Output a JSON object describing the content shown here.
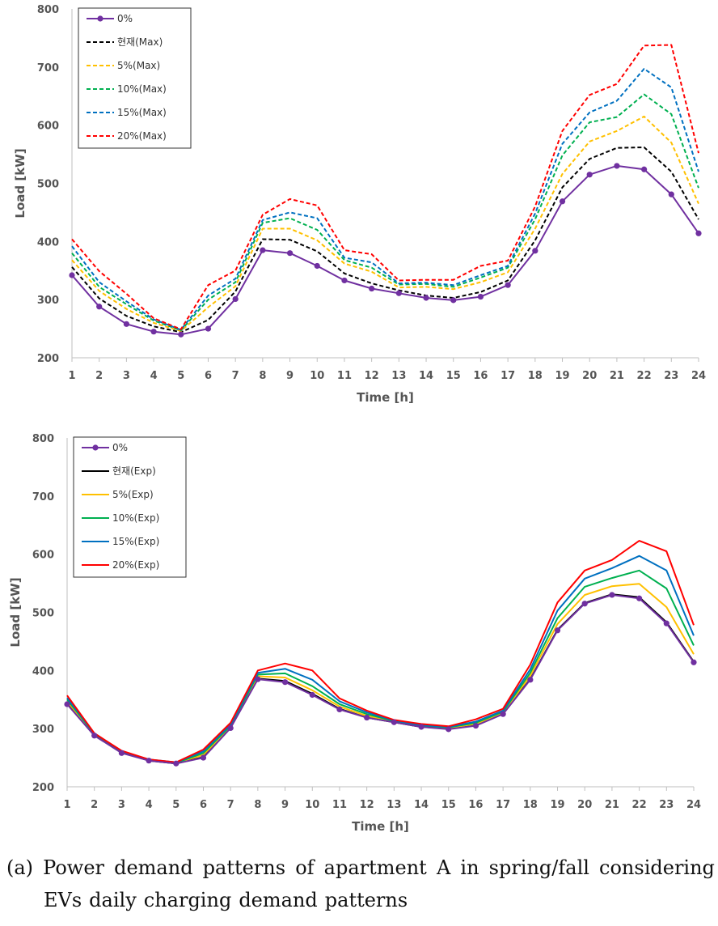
{
  "chart_data": [
    {
      "type": "line",
      "title": "",
      "xlabel": "Time [h]",
      "ylabel": "Load [kW]",
      "ylim": [
        200,
        800
      ],
      "yticks": [
        200,
        300,
        400,
        500,
        600,
        700,
        800
      ],
      "x": [
        1,
        2,
        3,
        4,
        5,
        6,
        7,
        8,
        9,
        10,
        11,
        12,
        13,
        14,
        15,
        16,
        17,
        18,
        19,
        20,
        21,
        22,
        23,
        24
      ],
      "legend_position": "top-left",
      "grid": false,
      "series": [
        {
          "name": "0%",
          "color": "#7030a0",
          "style": "solid-marker",
          "values": [
            342,
            288,
            258,
            245,
            240,
            250,
            301,
            385,
            380,
            358,
            333,
            319,
            311,
            303,
            299,
            305,
            325,
            384,
            469,
            515,
            530,
            524,
            481,
            414
          ]
        },
        {
          "name": "현재(Max)",
          "color": "#000000",
          "style": "dashed",
          "values": [
            356,
            302,
            272,
            254,
            244,
            265,
            314,
            404,
            403,
            383,
            345,
            328,
            316,
            307,
            303,
            313,
            333,
            402,
            493,
            542,
            561,
            562,
            520,
            438
          ]
        },
        {
          "name": "5%(Max)",
          "color": "#ffc000",
          "style": "dashed",
          "values": [
            368,
            315,
            284,
            260,
            246,
            287,
            323,
            422,
            422,
            402,
            362,
            348,
            321,
            322,
            318,
            330,
            347,
            422,
            516,
            572,
            590,
            615,
            570,
            465
          ]
        },
        {
          "name": "10%(Max)",
          "color": "#00b050",
          "style": "dashed",
          "values": [
            380,
            322,
            292,
            264,
            247,
            300,
            330,
            432,
            440,
            420,
            368,
            355,
            326,
            327,
            322,
            338,
            355,
            438,
            548,
            605,
            614,
            653,
            619,
            492
          ]
        },
        {
          "name": "15%(Max)",
          "color": "#0070c0",
          "style": "dashed",
          "values": [
            392,
            330,
            297,
            266,
            248,
            307,
            336,
            437,
            450,
            440,
            372,
            364,
            328,
            329,
            325,
            342,
            358,
            448,
            568,
            622,
            642,
            697,
            665,
            520
          ]
        },
        {
          "name": "20%(Max)",
          "color": "#ff0000",
          "style": "dashed",
          "values": [
            404,
            349,
            310,
            268,
            249,
            325,
            350,
            446,
            473,
            462,
            385,
            378,
            333,
            334,
            334,
            358,
            367,
            460,
            590,
            652,
            671,
            737,
            738,
            552
          ]
        }
      ]
    },
    {
      "type": "line",
      "title": "",
      "xlabel": "Time [h]",
      "ylabel": "Load [kW]",
      "ylim": [
        200,
        800
      ],
      "yticks": [
        200,
        300,
        400,
        500,
        600,
        700,
        800
      ],
      "x": [
        1,
        2,
        3,
        4,
        5,
        6,
        7,
        8,
        9,
        10,
        11,
        12,
        13,
        14,
        15,
        16,
        17,
        18,
        19,
        20,
        21,
        22,
        23,
        24
      ],
      "legend_position": "top-left",
      "grid": false,
      "series": [
        {
          "name": "0%",
          "color": "#7030a0",
          "style": "solid-marker",
          "values": [
            342,
            288,
            258,
            245,
            240,
            250,
            301,
            385,
            380,
            358,
            333,
            319,
            311,
            303,
            299,
            305,
            325,
            384,
            469,
            515,
            530,
            524,
            481,
            414
          ]
        },
        {
          "name": "현재(Exp)",
          "color": "#000000",
          "style": "solid",
          "values": [
            343,
            289,
            259,
            245,
            240,
            251,
            302,
            386,
            382,
            360,
            334,
            319,
            311,
            303,
            300,
            306,
            326,
            385,
            470,
            516,
            531,
            526,
            483,
            415
          ]
        },
        {
          "name": "5%(Exp)",
          "color": "#ffc000",
          "style": "solid",
          "values": [
            347,
            290,
            259,
            246,
            241,
            255,
            303,
            390,
            388,
            366,
            338,
            322,
            312,
            304,
            301,
            308,
            327,
            391,
            480,
            530,
            545,
            549,
            509,
            428
          ]
        },
        {
          "name": "10%(Exp)",
          "color": "#00b050",
          "style": "solid",
          "values": [
            350,
            291,
            260,
            246,
            241,
            258,
            305,
            393,
            395,
            373,
            342,
            325,
            313,
            305,
            302,
            310,
            329,
            396,
            490,
            544,
            559,
            572,
            541,
            443
          ]
        },
        {
          "name": "15%(Exp)",
          "color": "#0070c0",
          "style": "solid",
          "values": [
            353,
            292,
            261,
            247,
            242,
            261,
            307,
            396,
            403,
            384,
            347,
            328,
            314,
            306,
            303,
            312,
            331,
            402,
            503,
            558,
            576,
            597,
            572,
            460
          ]
        },
        {
          "name": "20%(Exp)",
          "color": "#ff0000",
          "style": "solid",
          "values": [
            357,
            292,
            262,
            247,
            242,
            264,
            310,
            400,
            412,
            400,
            352,
            331,
            315,
            308,
            304,
            316,
            334,
            410,
            517,
            572,
            590,
            623,
            605,
            478
          ]
        }
      ]
    }
  ],
  "caption": {
    "line1": [
      "(a)",
      "Power",
      "demand",
      "patterns",
      "of",
      "apartment",
      "A",
      "in",
      "spring/fall",
      "considering"
    ],
    "line2": [
      "EVs",
      "daily",
      "charging",
      "demand",
      "patterns"
    ]
  }
}
